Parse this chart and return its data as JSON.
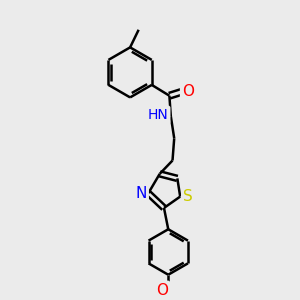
{
  "background_color": "#ebebeb",
  "bond_color": "#000000",
  "bond_width": 1.8,
  "atom_colors": {
    "O": "#ff0000",
    "N": "#0000ff",
    "S": "#cccc00",
    "C": "#000000"
  },
  "font_size": 10
}
